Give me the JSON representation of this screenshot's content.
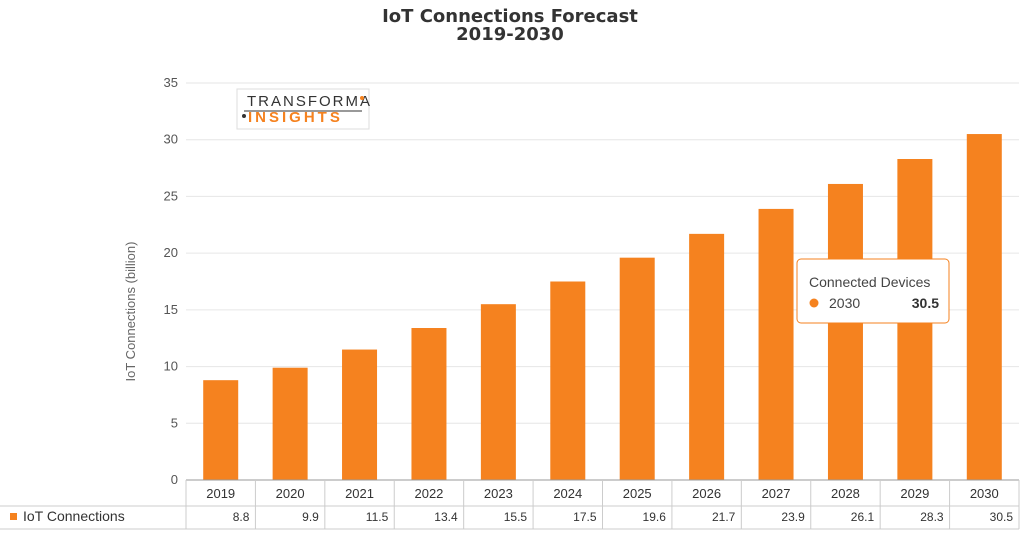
{
  "chart_data": {
    "type": "bar",
    "title": "IoT Connections Forecast",
    "subtitle": "2019-2030",
    "ylabel": "IoT Connections (billion)",
    "ylim": [
      0,
      35
    ],
    "yticks": [
      0,
      5,
      10,
      15,
      20,
      25,
      30,
      35
    ],
    "categories": [
      "2019",
      "2020",
      "2021",
      "2022",
      "2023",
      "2024",
      "2025",
      "2026",
      "2027",
      "2028",
      "2029",
      "2030"
    ],
    "series": [
      {
        "name": "IoT Connections",
        "values": [
          8.8,
          9.9,
          11.5,
          13.4,
          15.5,
          17.5,
          19.6,
          21.7,
          23.9,
          26.1,
          28.3,
          30.5
        ]
      }
    ],
    "data_table_values": [
      "8.8",
      "9.9",
      "11.5",
      "13.4",
      "15.5",
      "17.5",
      "19.6",
      "21.7",
      "23.9",
      "26.1",
      "28.3",
      "30.5"
    ],
    "grid": true,
    "legend_placement": "bottom-left data table",
    "bar_color": "#f5821f"
  },
  "tooltip": {
    "title": "Connected Devices",
    "year": "2030",
    "value": "30.5"
  },
  "logo": {
    "line1": "TRANSFORMA",
    "line2": "INSIGHTS"
  }
}
